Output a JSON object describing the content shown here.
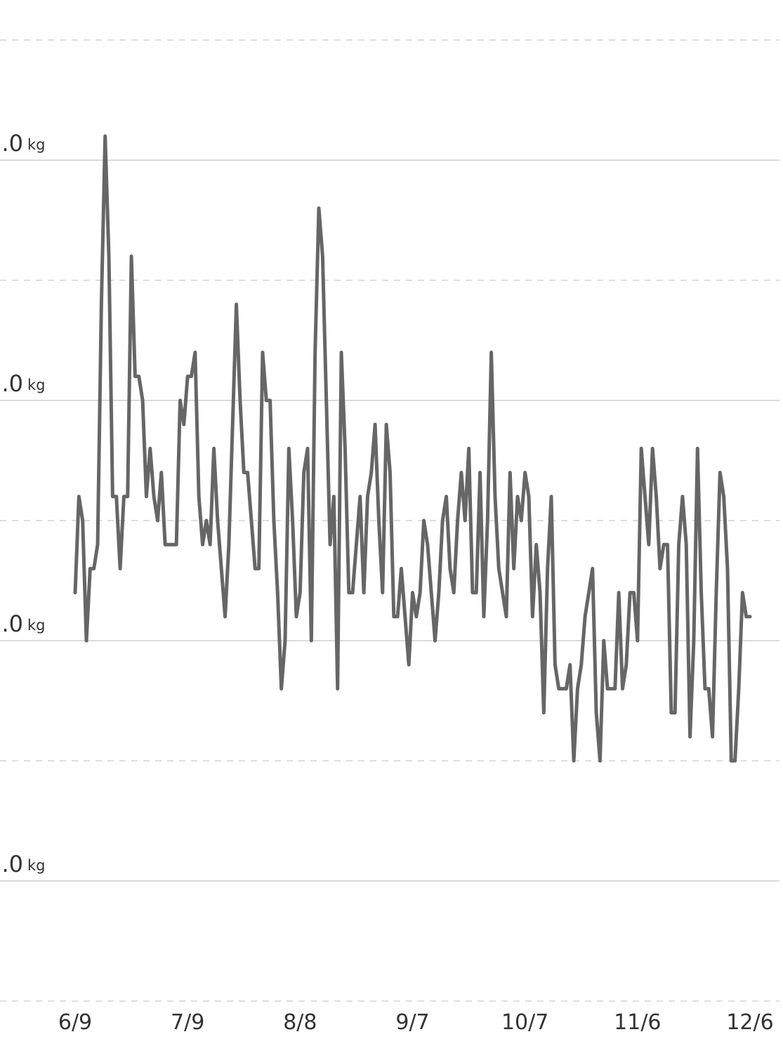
{
  "chart_data": {
    "type": "line",
    "y_unit": "kg",
    "ylim": [
      -0.5,
      3.5
    ],
    "yticks": [
      {
        "value": 3,
        "label": ".0"
      },
      {
        "value": 2,
        "label": ".0"
      },
      {
        "value": 1,
        "label": ".0"
      },
      {
        "value": 0,
        "label": ".0"
      }
    ],
    "minor_grid": [
      3.5,
      2.5,
      1.5,
      0.5,
      -0.5
    ],
    "xticks": [
      "6/9",
      "7/9",
      "8/8",
      "9/7",
      "10/7",
      "11/6",
      "12/6"
    ],
    "grid": true,
    "x": [
      "6/9",
      "6/10",
      "6/11",
      "6/12",
      "6/13",
      "6/14",
      "6/15",
      "6/16",
      "6/17",
      "6/18",
      "6/19",
      "6/20",
      "6/21",
      "6/22",
      "6/23",
      "6/24",
      "6/25",
      "6/26",
      "6/27",
      "6/28",
      "6/29",
      "6/30",
      "7/1",
      "7/2",
      "7/3",
      "7/4",
      "7/5",
      "7/6",
      "7/7",
      "7/8",
      "7/9",
      "7/10",
      "7/11",
      "7/12",
      "7/13",
      "7/14",
      "7/15",
      "7/16",
      "7/17",
      "7/18",
      "7/19",
      "7/20",
      "7/21",
      "7/22",
      "7/23",
      "7/24",
      "7/25",
      "7/26",
      "7/27",
      "7/28",
      "7/29",
      "7/30",
      "7/31",
      "8/1",
      "8/2",
      "8/3",
      "8/4",
      "8/5",
      "8/6",
      "8/7",
      "8/8",
      "8/9",
      "8/10",
      "8/11",
      "8/12",
      "8/13",
      "8/14",
      "8/15",
      "8/16",
      "8/17",
      "8/18",
      "8/19",
      "8/20",
      "8/21",
      "8/22",
      "8/23",
      "8/24",
      "8/25",
      "8/26",
      "8/27",
      "8/28",
      "8/29",
      "8/30",
      "8/31",
      "9/1",
      "9/2",
      "9/3",
      "9/4",
      "9/5",
      "9/6",
      "9/7",
      "9/8",
      "9/9",
      "9/10",
      "9/11",
      "9/12",
      "9/13",
      "9/14",
      "9/15",
      "9/16",
      "9/17",
      "9/18",
      "9/19",
      "9/20",
      "9/21",
      "9/22",
      "9/23",
      "9/24",
      "9/25",
      "9/26",
      "9/27",
      "9/28",
      "9/29",
      "9/30",
      "10/1",
      "10/2",
      "10/3",
      "10/4",
      "10/5",
      "10/6",
      "10/7",
      "10/8",
      "10/9",
      "10/10",
      "10/11",
      "10/12",
      "10/13",
      "10/14",
      "10/15",
      "10/16",
      "10/17",
      "10/18",
      "10/19",
      "10/20",
      "10/21",
      "10/22",
      "10/23",
      "10/24",
      "10/25",
      "10/26",
      "10/27",
      "10/28",
      "10/29",
      "10/30",
      "10/31",
      "11/1",
      "11/2",
      "11/3",
      "11/4",
      "11/5",
      "11/6",
      "11/7",
      "11/8",
      "11/9",
      "11/10",
      "11/11",
      "11/12",
      "11/13",
      "11/14",
      "11/15",
      "11/16",
      "11/17",
      "11/18",
      "11/19",
      "11/20",
      "11/21",
      "11/22",
      "11/23",
      "11/24",
      "11/25",
      "11/26",
      "11/27",
      "11/28",
      "11/29",
      "11/30",
      "12/1",
      "12/2",
      "12/3",
      "12/4",
      "12/5",
      "12/6"
    ],
    "series": [
      {
        "color": "#666666",
        "values": [
          1.2,
          1.6,
          1.5,
          1.0,
          1.3,
          1.3,
          1.4,
          2.4,
          3.1,
          2.6,
          1.6,
          1.6,
          1.3,
          1.6,
          1.6,
          2.6,
          2.1,
          2.1,
          2.0,
          1.6,
          1.8,
          1.6,
          1.5,
          1.7,
          1.4,
          1.4,
          1.4,
          1.4,
          2.0,
          1.9,
          2.1,
          2.1,
          2.2,
          1.6,
          1.4,
          1.5,
          1.4,
          1.8,
          1.5,
          1.3,
          1.1,
          1.4,
          1.9,
          2.4,
          2.0,
          1.7,
          1.7,
          1.5,
          1.3,
          1.3,
          2.2,
          2.0,
          2.0,
          1.5,
          1.2,
          0.8,
          1.0,
          1.8,
          1.5,
          1.1,
          1.2,
          1.7,
          1.8,
          1.0,
          2.2,
          2.8,
          2.6,
          2.0,
          1.4,
          1.6,
          0.8,
          2.2,
          1.8,
          1.2,
          1.2,
          1.4,
          1.6,
          1.2,
          1.6,
          1.7,
          1.9,
          1.5,
          1.2,
          1.9,
          1.7,
          1.1,
          1.1,
          1.3,
          1.1,
          0.9,
          1.2,
          1.1,
          1.2,
          1.5,
          1.4,
          1.2,
          1.0,
          1.2,
          1.5,
          1.6,
          1.3,
          1.2,
          1.5,
          1.7,
          1.5,
          1.8,
          1.2,
          1.2,
          1.7,
          1.1,
          1.5,
          2.2,
          1.6,
          1.3,
          1.2,
          1.1,
          1.7,
          1.3,
          1.6,
          1.5,
          1.7,
          1.6,
          1.1,
          1.4,
          1.2,
          0.7,
          1.3,
          1.6,
          0.9,
          0.8,
          0.8,
          0.8,
          0.9,
          0.5,
          0.8,
          0.9,
          1.1,
          1.2,
          1.3,
          0.7,
          0.5,
          1.0,
          0.8,
          0.8,
          0.8,
          1.2,
          0.8,
          0.9,
          1.2,
          1.2,
          1.0,
          1.8,
          1.6,
          1.4,
          1.8,
          1.6,
          1.3,
          1.4,
          1.4,
          0.7,
          0.7,
          1.4,
          1.6,
          1.4,
          0.6,
          1.0,
          1.8,
          1.2,
          0.8,
          0.8,
          0.6,
          1.2,
          1.7,
          1.6,
          1.3,
          0.5,
          0.5,
          0.8,
          1.2,
          1.1,
          1.1
        ]
      }
    ]
  }
}
